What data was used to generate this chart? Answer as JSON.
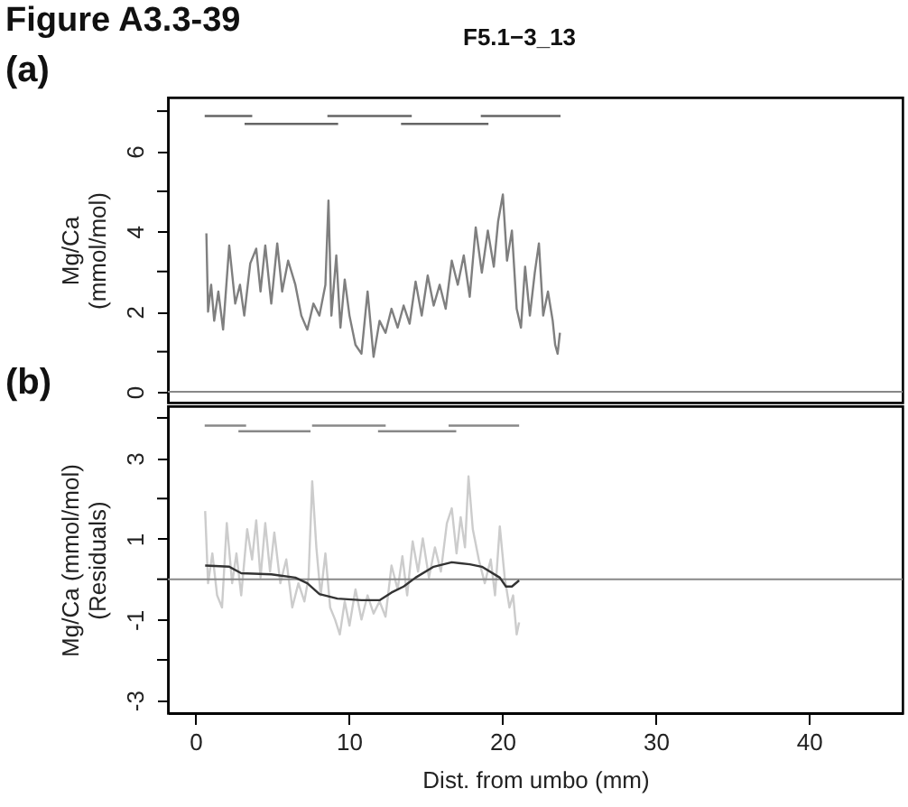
{
  "chart_data": [
    {
      "type": "line",
      "title": "Figure A3.3-39",
      "subtitle": "F5.1−3_13",
      "annotations": [
        "(a)"
      ],
      "ylabel": "Mg/Ca\n(mmol/mol)",
      "xlim": [
        -1.8,
        46.1
      ],
      "ylim": [
        -0.27,
        7.34
      ],
      "yticks": [
        0,
        {
          "value": 1,
          "label": null
        },
        2,
        {
          "value": 3,
          "label": null
        },
        4,
        {
          "value": 5,
          "label": null
        },
        6,
        {
          "value": 7,
          "label": null
        }
      ],
      "tick_labels": "y",
      "grid": false,
      "marker": "none",
      "line_style": "solid",
      "ref_lines": [
        {
          "axis": "y",
          "value": 0,
          "color": "#888888"
        }
      ],
      "series": [
        {
          "color": "#7f7f7f",
          "x": [
            0.71,
            0.82,
            1.02,
            1.22,
            1.49,
            1.8,
            2.2,
            2.59,
            2.9,
            3.18,
            3.57,
            3.96,
            4.24,
            4.55,
            4.94,
            5.33,
            5.65,
            6.04,
            6.51,
            6.9,
            7.29,
            7.69,
            8.08,
            8.47,
            8.67,
            8.86,
            9.18,
            9.45,
            9.73,
            10.04,
            10.43,
            10.82,
            11.22,
            11.61,
            12.0,
            12.39,
            12.78,
            13.18,
            13.57,
            13.96,
            14.35,
            14.75,
            15.14,
            15.53,
            15.92,
            16.31,
            16.71,
            17.1,
            17.49,
            17.88,
            18.27,
            18.67,
            19.06,
            19.45,
            19.73,
            20.04,
            20.31,
            20.63,
            20.94,
            21.22,
            21.49,
            21.8,
            22.12,
            22.39,
            22.67,
            22.98,
            23.29,
            23.45,
            23.61,
            23.76
          ],
          "values": [
            3.95,
            2.0,
            2.67,
            1.77,
            2.5,
            1.55,
            3.65,
            2.2,
            2.67,
            1.9,
            3.2,
            3.57,
            2.5,
            3.65,
            2.2,
            3.7,
            2.5,
            3.27,
            2.67,
            1.9,
            1.55,
            2.2,
            1.9,
            2.67,
            4.77,
            1.9,
            3.4,
            1.6,
            2.8,
            1.9,
            1.17,
            0.95,
            2.5,
            0.87,
            1.77,
            1.47,
            2.07,
            1.6,
            2.15,
            1.7,
            2.75,
            1.9,
            2.9,
            2.15,
            2.67,
            2.07,
            3.27,
            2.67,
            3.4,
            2.37,
            4.1,
            2.97,
            4.02,
            3.12,
            4.25,
            4.92,
            3.27,
            4.02,
            2.07,
            1.6,
            3.12,
            1.9,
            2.97,
            3.7,
            1.9,
            2.5,
            1.77,
            1.17,
            0.95,
            1.47
          ]
        },
        {
          "color": "#666666",
          "x": [
            0.6,
            3.7
          ],
          "values": [
            6.88,
            6.88
          ]
        },
        {
          "color": "#666666",
          "x": [
            3.2,
            9.3
          ],
          "values": [
            6.68,
            6.68
          ]
        },
        {
          "color": "#666666",
          "x": [
            8.6,
            14.1
          ],
          "values": [
            6.88,
            6.88
          ]
        },
        {
          "color": "#666666",
          "x": [
            13.4,
            19.1
          ],
          "values": [
            6.68,
            6.68
          ]
        },
        {
          "color": "#666666",
          "x": [
            18.6,
            23.8
          ],
          "values": [
            6.88,
            6.88
          ]
        }
      ]
    },
    {
      "type": "line",
      "annotations": [
        "(b)"
      ],
      "xlabel": "Dist. from umbo (mm)",
      "ylabel": "Mg/Ca (mmol/mol)\n(Residuals)",
      "xlim": [
        -1.8,
        46.1
      ],
      "xticks": [
        0,
        10,
        20,
        30,
        40
      ],
      "ylim": [
        -3.32,
        4.29
      ],
      "yticks": [
        -3,
        {
          "value": -2,
          "label": null
        },
        -1,
        {
          "value": 0,
          "label": null
        },
        1,
        {
          "value": 2,
          "label": null
        },
        3,
        {
          "value": 4,
          "label": null
        }
      ],
      "grid": false,
      "marker": "none",
      "line_style": "solid",
      "ref_lines": [
        {
          "axis": "y",
          "value": 0,
          "color": "#888888"
        }
      ],
      "series": [
        {
          "color": "#cccccc",
          "x": [
            0.63,
            0.82,
            1.1,
            1.41,
            1.73,
            2.04,
            2.39,
            2.67,
            2.98,
            3.37,
            3.69,
            3.96,
            4.24,
            4.55,
            4.86,
            5.14,
            5.53,
            5.92,
            6.31,
            6.71,
            7.1,
            7.37,
            7.61,
            7.88,
            8.16,
            8.47,
            8.78,
            9.1,
            9.41,
            9.73,
            10.04,
            10.43,
            10.82,
            11.22,
            11.61,
            12.0,
            12.39,
            12.78,
            13.18,
            13.49,
            13.8,
            14.16,
            14.51,
            14.82,
            15.22,
            15.61,
            16.0,
            16.39,
            16.71,
            17.02,
            17.29,
            17.57,
            17.8,
            18.08,
            18.47,
            18.86,
            19.25,
            19.53,
            19.84,
            20.16,
            20.47,
            20.71,
            20.94,
            21.1
          ],
          "values": [
            1.69,
            -0.1,
            0.64,
            -0.4,
            -0.7,
            1.39,
            -0.1,
            0.64,
            -0.4,
            1.24,
            0.49,
            1.46,
            0.04,
            1.39,
            0.19,
            1.16,
            -0.1,
            0.49,
            -0.7,
            -0.1,
            -0.55,
            0.04,
            2.43,
            0.79,
            -0.4,
            0.64,
            -0.7,
            -1.0,
            -1.37,
            -0.55,
            -1.15,
            -0.25,
            -1.0,
            -0.4,
            -0.85,
            -0.55,
            -0.93,
            0.34,
            -0.25,
            0.57,
            -0.4,
            0.94,
            0.19,
            1.01,
            0.04,
            0.79,
            0.19,
            1.39,
            1.76,
            0.64,
            1.54,
            0.79,
            2.55,
            1.24,
            0.49,
            -0.1,
            0.49,
            -0.4,
            1.31,
            0.04,
            -0.7,
            -0.4,
            -1.37,
            -1.07
          ]
        },
        {
          "color": "#333333",
          "x": [
            0.63,
            2.2,
            2.98,
            4.94,
            6.51,
            7.29,
            8.08,
            9.25,
            10.82,
            12.0,
            12.78,
            13.57,
            14.35,
            15.53,
            16.71,
            17.88,
            18.67,
            19.84,
            20.24,
            20.63,
            21.1
          ],
          "values": [
            0.34,
            0.31,
            0.15,
            0.12,
            0.04,
            -0.1,
            -0.37,
            -0.48,
            -0.52,
            -0.52,
            -0.33,
            -0.18,
            0.04,
            0.31,
            0.42,
            0.37,
            0.31,
            0.04,
            -0.18,
            -0.18,
            -0.03
          ]
        },
        {
          "color": "#888888",
          "x": [
            0.6,
            3.3
          ],
          "values": [
            3.81,
            3.81
          ]
        },
        {
          "color": "#888888",
          "x": [
            2.8,
            7.5
          ],
          "values": [
            3.67,
            3.67
          ]
        },
        {
          "color": "#888888",
          "x": [
            7.6,
            12.4
          ],
          "values": [
            3.81,
            3.81
          ]
        },
        {
          "color": "#888888",
          "x": [
            11.9,
            17.0
          ],
          "values": [
            3.67,
            3.67
          ]
        },
        {
          "color": "#888888",
          "x": [
            16.5,
            21.1
          ],
          "values": [
            3.81,
            3.81
          ]
        }
      ]
    }
  ]
}
